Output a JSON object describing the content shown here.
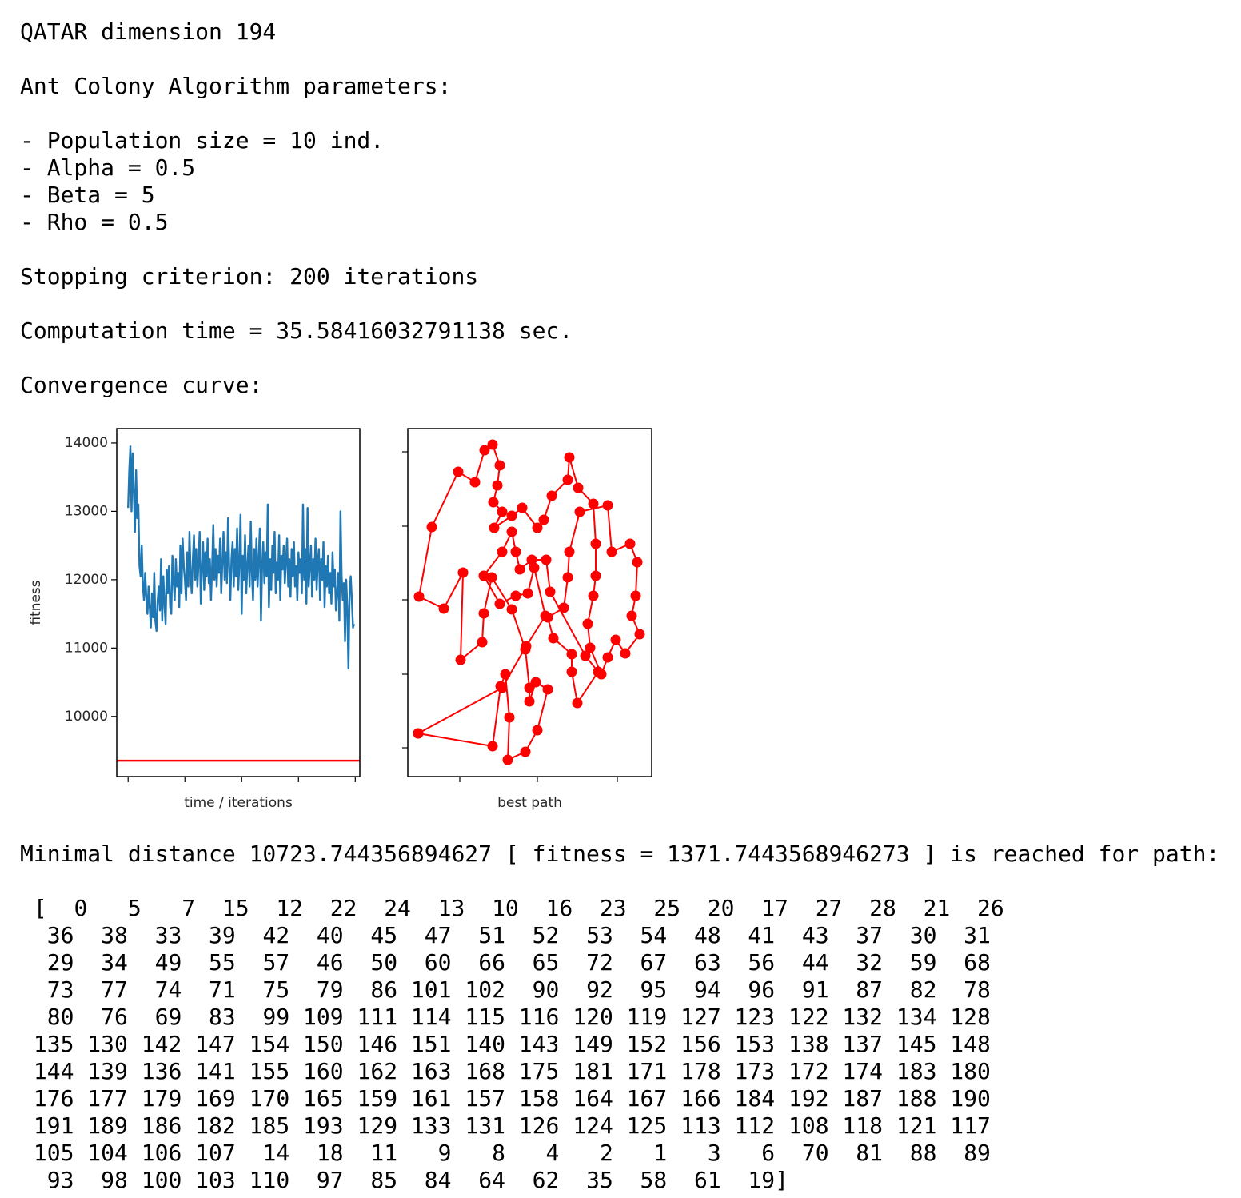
{
  "title": "QATAR dimension 194",
  "params_heading": "Ant Colony Algorithm parameters:",
  "params": [
    "- Population size = 10 ind.",
    "- Alpha = 0.5",
    "- Beta = 5",
    "- Rho = 0.5"
  ],
  "stopping": "Stopping criterion: 200 iterations",
  "time": "Computation time = 35.58416032791138 sec.",
  "curve_heading": "Convergence curve:",
  "chart_data": [
    {
      "type": "line",
      "xlabel": "time / iterations",
      "ylabel": "fitness",
      "x": [
        0,
        1,
        2,
        3,
        4,
        5,
        6,
        7,
        8,
        9,
        10,
        11,
        12,
        13,
        14,
        15,
        16,
        17,
        18,
        19,
        20,
        21,
        22,
        23,
        24,
        25,
        26,
        27,
        28,
        29,
        30,
        31,
        32,
        33,
        34,
        35,
        36,
        37,
        38,
        39,
        40,
        41,
        42,
        43,
        44,
        45,
        46,
        47,
        48,
        49,
        50,
        51,
        52,
        53,
        54,
        55,
        56,
        57,
        58,
        59,
        60,
        61,
        62,
        63,
        64,
        65,
        66,
        67,
        68,
        69,
        70,
        71,
        72,
        73,
        74,
        75,
        76,
        77,
        78,
        79,
        80,
        81,
        82,
        83,
        84,
        85,
        86,
        87,
        88,
        89,
        90,
        91,
        92,
        93,
        94,
        95,
        96,
        97,
        98,
        99,
        100,
        101,
        102,
        103,
        104,
        105,
        106,
        107,
        108,
        109,
        110,
        111,
        112,
        113,
        114,
        115,
        116,
        117,
        118,
        119,
        120,
        121,
        122,
        123,
        124,
        125,
        126,
        127,
        128,
        129,
        130,
        131,
        132,
        133,
        134,
        135,
        136,
        137,
        138,
        139,
        140,
        141,
        142,
        143,
        144,
        145,
        146,
        147,
        148,
        149,
        150,
        151,
        152,
        153,
        154,
        155,
        156,
        157,
        158,
        159,
        160,
        161,
        162,
        163,
        164,
        165,
        166,
        167,
        168,
        169,
        170,
        171,
        172,
        173,
        174,
        175,
        176,
        177,
        178,
        179,
        180,
        181,
        182,
        183,
        184,
        185,
        186,
        187,
        188,
        189,
        190,
        191,
        192,
        193,
        194,
        195,
        196,
        197,
        198,
        199
      ],
      "series": [
        {
          "color": "#1f77b4",
          "values": [
            13050,
            13600,
            13950,
            13000,
            13850,
            13300,
            12700,
            13600,
            12900,
            13100,
            12200,
            12050,
            12500,
            11900,
            11700,
            12100,
            11750,
            11500,
            11900,
            11600,
            11300,
            11800,
            11450,
            12100,
            11400,
            11250,
            11700,
            11900,
            11550,
            12300,
            11400,
            12050,
            11650,
            11350,
            12150,
            11800,
            12200,
            11600,
            11500,
            12350,
            12000,
            11700,
            12300,
            11900,
            12100,
            11600,
            12500,
            11800,
            12600,
            12200,
            12000,
            11700,
            12400,
            11900,
            12700,
            12100,
            11800,
            12300,
            12650,
            12000,
            12450,
            11900,
            12250,
            12700,
            11650,
            12150,
            12550,
            11850,
            12400,
            12050,
            12600,
            11950,
            12300,
            11700,
            12200,
            12800,
            12000,
            12450,
            11900,
            12350,
            12100,
            12600,
            11800,
            12250,
            12700,
            12000,
            12400,
            11950,
            12900,
            12200,
            11700,
            12300,
            12550,
            11900,
            12450,
            12050,
            12750,
            11850,
            12250,
            12950,
            11500,
            12350,
            12000,
            12650,
            11800,
            12200,
            12500,
            11900,
            12850,
            12100,
            11700,
            12450,
            12000,
            12600,
            11900,
            12300,
            12750,
            11400,
            12200,
            12550,
            11950,
            12400,
            12050,
            13100,
            11600,
            12300,
            11850,
            12500,
            12100,
            12700,
            11800,
            12250,
            12000,
            12650,
            11700,
            12350,
            12150,
            12500,
            11950,
            12250,
            12600,
            11900,
            12300,
            11750,
            12450,
            12050,
            12550,
            11900,
            12200,
            11700,
            12400,
            12100,
            12300,
            11800,
            13100,
            12000,
            12450,
            11650,
            13050,
            11900,
            12200,
            12500,
            11750,
            12300,
            12000,
            12600,
            11850,
            12250,
            12450,
            11700,
            12300,
            12000,
            12550,
            11600,
            12200,
            11900,
            12350,
            11800,
            12100,
            11650,
            12400,
            11900,
            12150,
            11550,
            11800,
            12100,
            11400,
            13000,
            12050,
            11700,
            11950,
            11100,
            12000,
            11600,
            10700,
            11800,
            12050,
            11700,
            11300,
            11350
          ]
        }
      ],
      "reference_line": {
        "value": 9352,
        "color": "#ff0000"
      },
      "xlim": [
        -10,
        204
      ],
      "ylim": [
        9120,
        14210
      ],
      "xticks": [
        0,
        50,
        100,
        150,
        200
      ],
      "yticks": [
        10000,
        11000,
        12000,
        13000,
        14000
      ],
      "show_xtick_labels": false,
      "show_ytick_labels": true
    },
    {
      "type": "path",
      "xlabel": "best path",
      "color": "#ff0000",
      "markers": true,
      "x": [
        13,
        106,
        116,
        122,
        127,
        125,
        147,
        162,
        175,
        160,
        152,
        152,
        147,
        130,
        105,
        95,
        93,
        66,
        69,
        45,
        14,
        30,
        63,
        84,
        96,
        106,
        115,
        112,
        107,
        118,
        108,
        130,
        143,
        162,
        170,
        180,
        200,
        202,
        213,
        232,
        235,
        235,
        232,
        225,
        228,
        242,
        250,
        260,
        272,
        290,
        280,
        285,
        287,
        278,
        255,
        250,
        215,
        202,
        200,
        195,
        175,
        182,
        205,
        205,
        212,
        238,
        222,
        178,
        173,
        155,
        140,
        135,
        130,
        118,
        95,
        115,
        135,
        150,
        158,
        172,
        148,
        118,
        13
      ],
      "values": [
        54,
        38,
        113,
        128,
        74,
        21,
        31,
        58,
        109,
        118,
        94,
        111,
        159,
        209,
        249,
        204,
        168,
        146,
        255,
        210,
        225,
        312,
        381,
        368,
        408,
        415,
        389,
        364,
        343,
        331,
        311,
        326,
        336,
        311,
        321,
        351,
        371,
        399,
        361,
        341,
        291,
        251,
        226,
        191,
        161,
        128,
        149,
        171,
        154,
        178,
        201,
        226,
        268,
        291,
        281,
        339,
        331,
        281,
        249,
        211,
        199,
        173,
        153,
        131,
        92,
        131,
        151,
        231,
        271,
        271,
        259,
        281,
        306,
        281,
        251,
        216,
        226,
        229,
        261,
        201,
        163,
        111,
        54
      ],
      "xlim": [
        0,
        305
      ],
      "ylim": [
        0,
        435
      ],
      "xticks": [
        65,
        162,
        262
      ],
      "yticks": [
        36,
        128,
        221,
        313,
        406
      ],
      "show_xtick_labels": false,
      "show_ytick_labels": false
    }
  ],
  "result": "Minimal distance 10723.744356894627 [ fitness = 1371.7443568946273 ] is reached for path:",
  "path_open": "[",
  "path_close": "]",
  "path": [
    0,
    5,
    7,
    15,
    12,
    22,
    24,
    13,
    10,
    16,
    23,
    25,
    20,
    17,
    27,
    28,
    21,
    26,
    36,
    38,
    33,
    39,
    42,
    40,
    45,
    47,
    51,
    52,
    53,
    54,
    48,
    41,
    43,
    37,
    30,
    31,
    29,
    34,
    49,
    55,
    57,
    46,
    50,
    60,
    66,
    65,
    72,
    67,
    63,
    56,
    44,
    32,
    59,
    68,
    73,
    77,
    74,
    71,
    75,
    79,
    86,
    101,
    102,
    90,
    92,
    95,
    94,
    96,
    91,
    87,
    82,
    78,
    80,
    76,
    69,
    83,
    99,
    109,
    111,
    114,
    115,
    116,
    120,
    119,
    127,
    123,
    122,
    132,
    134,
    128,
    135,
    130,
    142,
    147,
    154,
    150,
    146,
    151,
    140,
    143,
    149,
    152,
    156,
    153,
    138,
    137,
    145,
    148,
    144,
    139,
    136,
    141,
    155,
    160,
    162,
    163,
    168,
    175,
    181,
    171,
    178,
    173,
    172,
    174,
    183,
    180,
    176,
    177,
    179,
    169,
    170,
    165,
    159,
    161,
    157,
    158,
    164,
    167,
    166,
    184,
    192,
    187,
    188,
    190,
    191,
    189,
    186,
    182,
    185,
    193,
    129,
    133,
    131,
    126,
    124,
    125,
    113,
    112,
    108,
    118,
    121,
    117,
    105,
    104,
    106,
    107,
    14,
    18,
    11,
    9,
    8,
    4,
    2,
    1,
    3,
    6,
    70,
    81,
    88,
    89,
    93,
    98,
    100,
    103,
    110,
    97,
    85,
    84,
    64,
    62,
    35,
    58,
    61,
    19
  ]
}
